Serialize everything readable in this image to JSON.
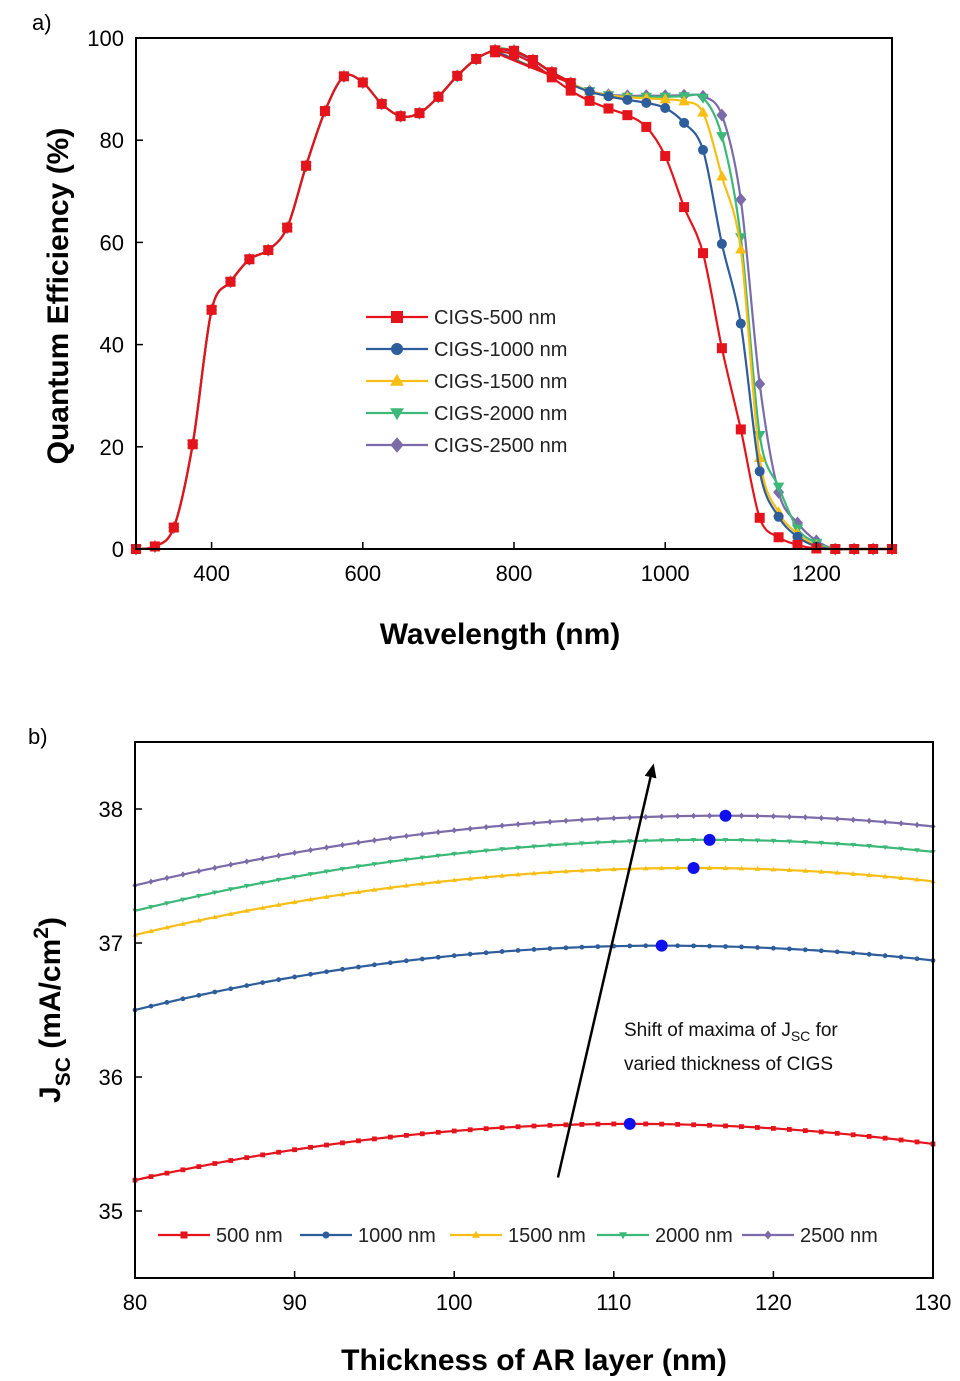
{
  "chart_data": [
    {
      "panel_label": "a)",
      "type": "line",
      "xlabel": "Wavelength (nm)",
      "ylabel": "Quantum Efficiency (%)",
      "xlim": [
        300,
        1300
      ],
      "ylim": [
        0,
        100
      ],
      "xticks": [
        400,
        600,
        800,
        1000,
        1200
      ],
      "yticks": [
        0,
        20,
        40,
        60,
        80,
        100
      ],
      "legend_position": "center",
      "grid": false,
      "shared_curve": {
        "x": [
          300,
          325,
          350,
          375,
          400,
          425,
          450,
          475,
          500,
          525,
          550,
          575,
          600,
          625,
          650,
          675,
          700,
          725,
          750,
          775,
          800,
          825,
          850,
          875
        ],
        "y": [
          0,
          0.5,
          4.2,
          20.5,
          46.8,
          52.3,
          56.7,
          58.5,
          62.9,
          75.0,
          85.7,
          92.5,
          91.3,
          87.1,
          84.7,
          85.3,
          88.5,
          92.6,
          95.9,
          97.6,
          97.5,
          95.7,
          93.3,
          91.2
        ]
      },
      "series": [
        {
          "name": "CIGS-500 nm",
          "color": "#e5131b",
          "marker": "square",
          "x": [
            775,
            800,
            825,
            850,
            875,
            900,
            925,
            950,
            975,
            1000,
            1025,
            1050,
            1075,
            1100,
            1125,
            1150,
            1175,
            1200,
            1225,
            1250,
            1275,
            1300
          ],
          "y": [
            97.2,
            96.8,
            95.0,
            92.3,
            89.7,
            87.7,
            86.2,
            84.9,
            82.6,
            76.9,
            66.9,
            57.9,
            39.3,
            23.4,
            6.1,
            2.3,
            0.8,
            0.1,
            0,
            0,
            0,
            0
          ]
        },
        {
          "name": "CIGS-1000 nm",
          "color": "#2d5d9b",
          "marker": "circle",
          "x": [
            775,
            800,
            825,
            850,
            875,
            900,
            925,
            950,
            975,
            1000,
            1025,
            1050,
            1075,
            1100,
            1125,
            1150,
            1175,
            1200,
            1225,
            1250,
            1275,
            1300
          ],
          "y": [
            97.5,
            97.3,
            95.6,
            93.2,
            91.0,
            89.5,
            88.6,
            87.9,
            87.3,
            86.3,
            83.4,
            78.1,
            59.7,
            44.1,
            15.2,
            6.3,
            2.4,
            0.5,
            0,
            0,
            0,
            0
          ]
        },
        {
          "name": "CIGS-1500 nm",
          "color": "#f7be15",
          "marker": "triangle-up",
          "x": [
            775,
            800,
            825,
            850,
            875,
            900,
            925,
            950,
            975,
            1000,
            1025,
            1050,
            1075,
            1100,
            1125,
            1150,
            1175,
            1200,
            1225,
            1250,
            1275,
            1300
          ],
          "y": [
            97.6,
            97.4,
            95.7,
            93.3,
            91.2,
            89.6,
            88.8,
            88.4,
            88.2,
            88.0,
            87.6,
            85.4,
            72.9,
            58.6,
            17.8,
            7.2,
            3.0,
            0.7,
            0,
            0,
            0,
            0
          ]
        },
        {
          "name": "CIGS-2000 nm",
          "color": "#3cb878",
          "marker": "triangle-down",
          "x": [
            775,
            800,
            825,
            850,
            875,
            900,
            925,
            950,
            975,
            1000,
            1025,
            1050,
            1075,
            1100,
            1125,
            1150,
            1175,
            1200,
            1225,
            1250,
            1275,
            1300
          ],
          "y": [
            97.6,
            97.5,
            95.7,
            93.3,
            91.2,
            89.6,
            88.8,
            88.5,
            88.5,
            88.5,
            88.6,
            88.3,
            80.8,
            61.0,
            22.3,
            12.2,
            4.0,
            1.2,
            0,
            0,
            0,
            0
          ]
        },
        {
          "name": "CIGS-2500 nm",
          "color": "#7b6ba8",
          "marker": "diamond",
          "x": [
            775,
            800,
            825,
            850,
            875,
            900,
            925,
            950,
            975,
            1000,
            1025,
            1050,
            1075,
            1100,
            1125,
            1150,
            1175,
            1200,
            1225,
            1250,
            1275,
            1300
          ],
          "y": [
            97.6,
            97.5,
            95.7,
            93.3,
            91.2,
            89.6,
            88.9,
            88.7,
            88.7,
            88.7,
            88.8,
            88.6,
            84.9,
            68.4,
            32.3,
            11.1,
            5.1,
            1.6,
            0,
            0,
            0,
            0
          ]
        }
      ]
    },
    {
      "panel_label": "b)",
      "type": "line",
      "xlabel": "Thickness of AR layer (nm)",
      "ylabel_main": "J",
      "ylabel_sub": "SC",
      "ylabel_rest": " (mA/cm",
      "ylabel_sup": "2",
      "ylabel_end": ")",
      "xlim": [
        80,
        130
      ],
      "ylim": [
        34.5,
        38.5
      ],
      "xticks": [
        80,
        90,
        100,
        110,
        120,
        130
      ],
      "yticks": [
        35,
        36,
        37,
        38
      ],
      "legend_position": "bottom",
      "grid": false,
      "max_marker_color": "#1010ee",
      "annotation": {
        "line1_pre": "Shift of maxima of J",
        "line1_sub": "SC",
        "line1_post": " for",
        "line2": "varied thickness of CIGS",
        "arrow_from": [
          106.5,
          35.25
        ],
        "arrow_to": [
          112.5,
          38.34
        ]
      },
      "series": [
        {
          "name": "500 nm",
          "color": "#e5131b",
          "marker": "square",
          "peak_x": 111,
          "peak_y": 35.65,
          "y_at_80": 35.23,
          "y_at_130": 35.5
        },
        {
          "name": "1000 nm",
          "color": "#2d5d9b",
          "marker": "circle",
          "peak_x": 113,
          "peak_y": 36.98,
          "y_at_80": 36.5,
          "y_at_130": 36.87
        },
        {
          "name": "1500 nm",
          "color": "#f7be15",
          "marker": "triangle-up",
          "peak_x": 115,
          "peak_y": 37.56,
          "y_at_80": 37.06,
          "y_at_130": 37.46
        },
        {
          "name": "2000 nm",
          "color": "#3cb878",
          "marker": "triangle-down",
          "peak_x": 116,
          "peak_y": 37.77,
          "y_at_80": 37.24,
          "y_at_130": 37.68
        },
        {
          "name": "2500 nm",
          "color": "#7b6ba8",
          "marker": "diamond",
          "peak_x": 117,
          "peak_y": 37.95,
          "y_at_80": 37.43,
          "y_at_130": 37.87
        }
      ]
    }
  ]
}
